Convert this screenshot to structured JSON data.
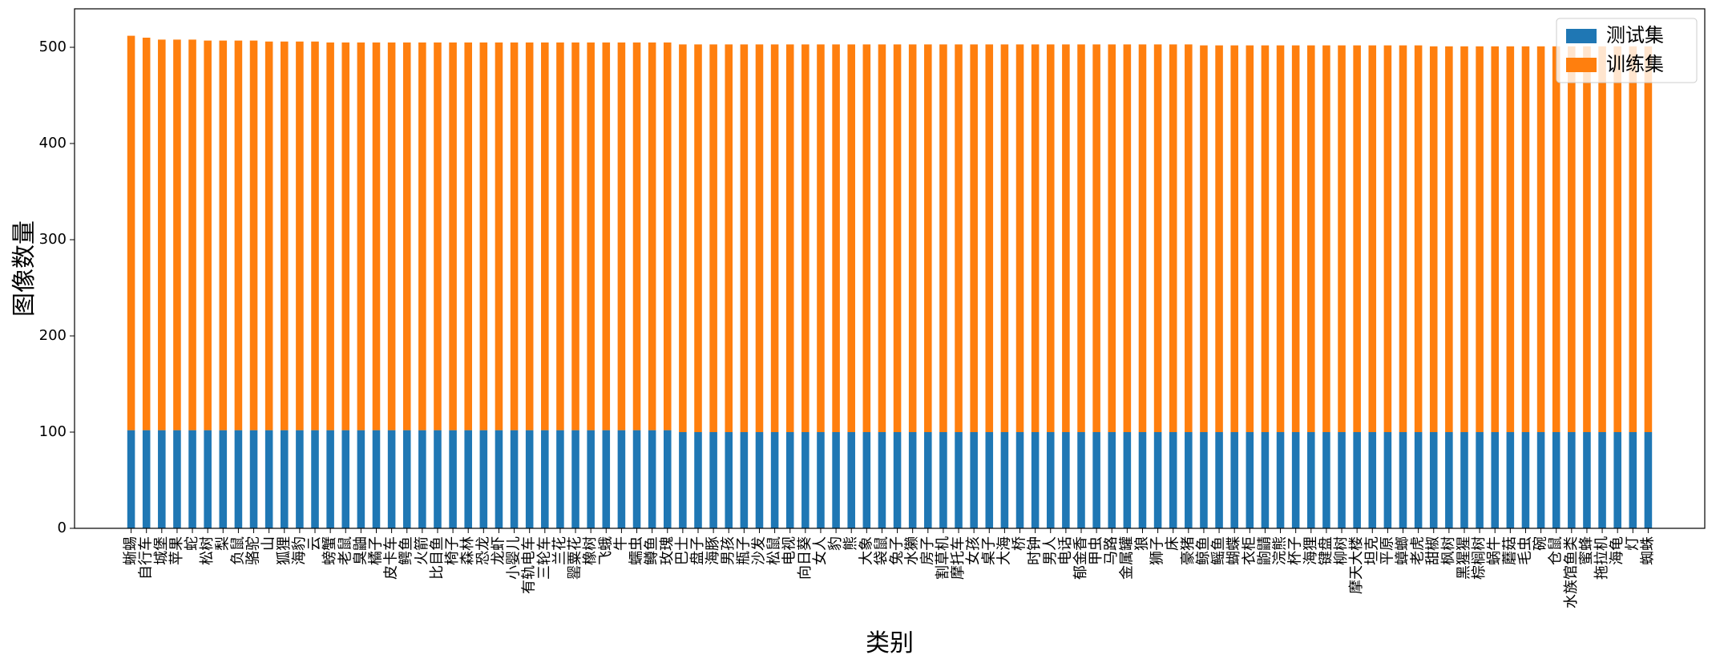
{
  "chart_data": {
    "type": "stacked_bar",
    "xlabel": "类别",
    "ylabel": "图像数量",
    "categories": [
      "蜥蜴",
      "自行车",
      "城堡",
      "苹果",
      "蛇",
      "松树",
      "梨",
      "负鼠",
      "骆驼",
      "山",
      "狐狸",
      "海豹",
      "云",
      "螃蟹",
      "老鼠",
      "臭鼬",
      "橘子",
      "皮卡车",
      "鳄鱼",
      "火箭",
      "比目鱼",
      "椅子",
      "森林",
      "恐龙",
      "龙虾",
      "小婴儿",
      "有轨电车",
      "三轮车",
      "兰花",
      "罂粟花",
      "橡树",
      "飞蛾",
      "牛",
      "蠕虫",
      "鳟鱼",
      "玫瑰",
      "巴士",
      "盘子",
      "海豚",
      "男孩",
      "瓶子",
      "沙发",
      "松鼠",
      "电视",
      "向日葵",
      "女人",
      "豹",
      "熊",
      "大象",
      "袋鼠",
      "兔子",
      "水獭",
      "房子",
      "割草机",
      "摩托车",
      "女孩",
      "桌子",
      "大海",
      "桥",
      "时钟",
      "男人",
      "电话",
      "郁金香",
      "甲虫",
      "马路",
      "金属罐",
      "狼",
      "狮子",
      "床",
      "豪猪",
      "鲸鱼",
      "鳐鱼",
      "蝴蝶",
      "衣柜",
      "鼩鼱",
      "浣熊",
      "杯子",
      "海狸",
      "键盘",
      "柳树",
      "摩天大楼",
      "坦克",
      "平原",
      "蟑螂",
      "老虎",
      "甜椒",
      "枫树",
      "黑猩猩",
      "棕榈树",
      "蜗牛",
      "蘑菇",
      "毛虫",
      "碗",
      "仓鼠",
      "水族馆鱼类",
      "蜜蜂",
      "拖拉机",
      "海龟",
      "灯",
      "蜘蛛"
    ],
    "series": [
      {
        "name": "测试集",
        "color": "#1f77b4",
        "values": [
          102,
          102,
          102,
          102,
          102,
          102,
          102,
          102,
          102,
          102,
          102,
          102,
          102,
          102,
          102,
          102,
          102,
          102,
          102,
          102,
          102,
          102,
          102,
          102,
          102,
          102,
          102,
          102,
          102,
          102,
          102,
          102,
          102,
          102,
          102,
          102,
          100,
          100,
          100,
          100,
          100,
          100,
          100,
          100,
          100,
          100,
          100,
          100,
          100,
          100,
          100,
          100,
          100,
          100,
          100,
          100,
          100,
          100,
          100,
          100,
          100,
          100,
          100,
          100,
          100,
          100,
          100,
          100,
          100,
          100,
          100,
          100,
          100,
          100,
          100,
          100,
          100,
          100,
          100,
          100,
          100,
          100,
          100,
          100,
          100,
          100,
          100,
          100,
          100,
          100,
          100,
          100,
          100,
          100,
          100,
          100,
          100,
          100,
          100,
          100
        ]
      },
      {
        "name": "训练集",
        "color": "#ff7f0e",
        "values": [
          410,
          408,
          406,
          406,
          406,
          405,
          405,
          405,
          405,
          404,
          404,
          404,
          404,
          403,
          403,
          403,
          403,
          403,
          403,
          403,
          403,
          403,
          403,
          403,
          403,
          403,
          403,
          403,
          403,
          403,
          403,
          403,
          403,
          403,
          403,
          403,
          403,
          403,
          403,
          403,
          403,
          403,
          403,
          403,
          403,
          403,
          403,
          403,
          403,
          403,
          403,
          403,
          403,
          403,
          403,
          403,
          403,
          403,
          403,
          403,
          403,
          403,
          403,
          403,
          403,
          403,
          403,
          403,
          403,
          403,
          402,
          402,
          402,
          402,
          402,
          402,
          402,
          402,
          402,
          402,
          402,
          402,
          402,
          402,
          402,
          401,
          401,
          401,
          401,
          401,
          401,
          401,
          401,
          401,
          401,
          401,
          401,
          401,
          401,
          401
        ]
      }
    ],
    "ylim": [
      0,
      540
    ],
    "yticks": [
      0,
      100,
      200,
      300,
      400,
      500
    ],
    "legend": "upper right"
  }
}
